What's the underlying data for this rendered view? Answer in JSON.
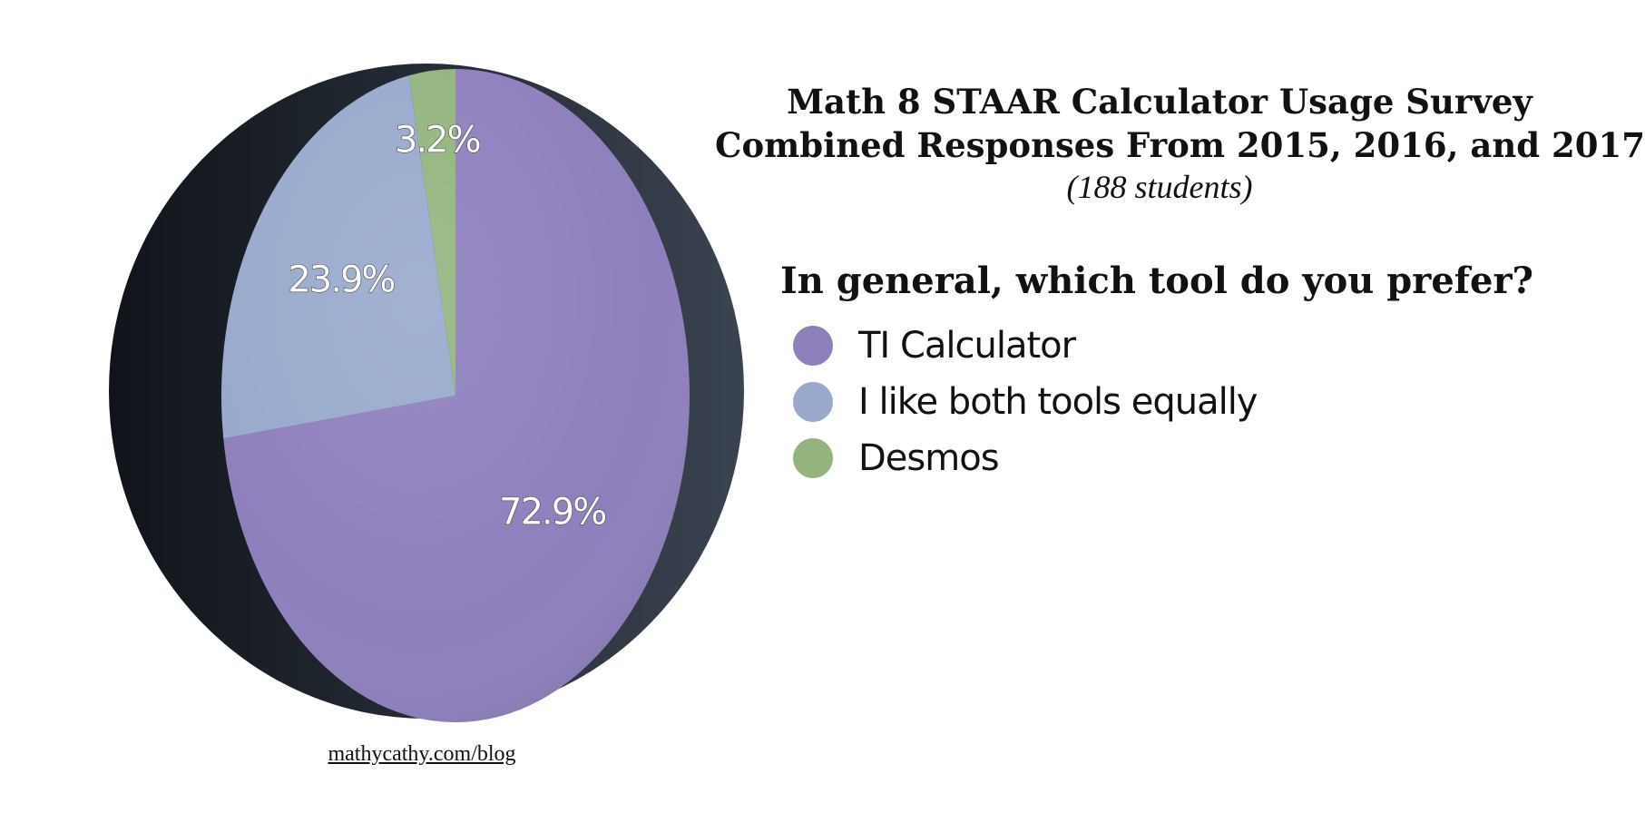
{
  "chart_data": {
    "type": "pie",
    "title_lines": [
      "Math 8 STAAR Calculator Usage Survey",
      "Combined Responses From 2015, 2016, and 2017"
    ],
    "subtitle": "(188 students)",
    "question": "In general, which tool do you prefer?",
    "slices": [
      {
        "label": "TI Calculator",
        "value": 72.9,
        "value_label": "72.9%",
        "color": "#8e7fbd"
      },
      {
        "label": "I like both tools equally",
        "value": 23.9,
        "value_label": "23.9%",
        "color": "#98a9cc"
      },
      {
        "label": "Desmos",
        "value": 3.2,
        "value_label": "3.2%",
        "color": "#93b57d"
      }
    ],
    "legend_position": "right"
  },
  "credit": "mathycathy.com/blog"
}
